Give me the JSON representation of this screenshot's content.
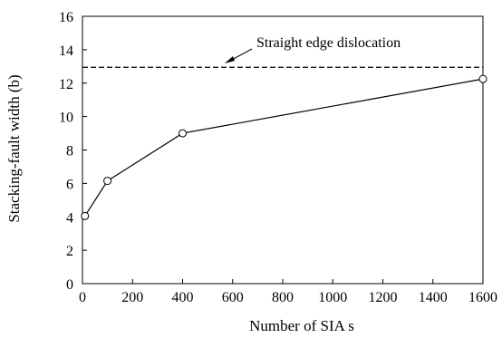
{
  "chart_data": {
    "type": "line",
    "title": "",
    "xlabel": "Number of SIA s",
    "ylabel": "Stacking-fault width (b)",
    "xlim": [
      0,
      1600
    ],
    "ylim": [
      0,
      16
    ],
    "x_ticks": [
      0,
      200,
      400,
      600,
      800,
      1000,
      1200,
      1400,
      1600
    ],
    "y_ticks": [
      0,
      2,
      4,
      6,
      8,
      10,
      12,
      14,
      16
    ],
    "grid": false,
    "legend": "none",
    "series": [
      {
        "x": [
          10,
          100,
          400,
          1600
        ],
        "y": [
          4.05,
          6.15,
          9.0,
          12.25
        ],
        "marker": "open-circle",
        "color": "#000000"
      }
    ],
    "reference_lines": [
      {
        "label": "Straight edge dislocation",
        "y": 12.95,
        "style": "dashed",
        "color": "#000000"
      }
    ]
  }
}
